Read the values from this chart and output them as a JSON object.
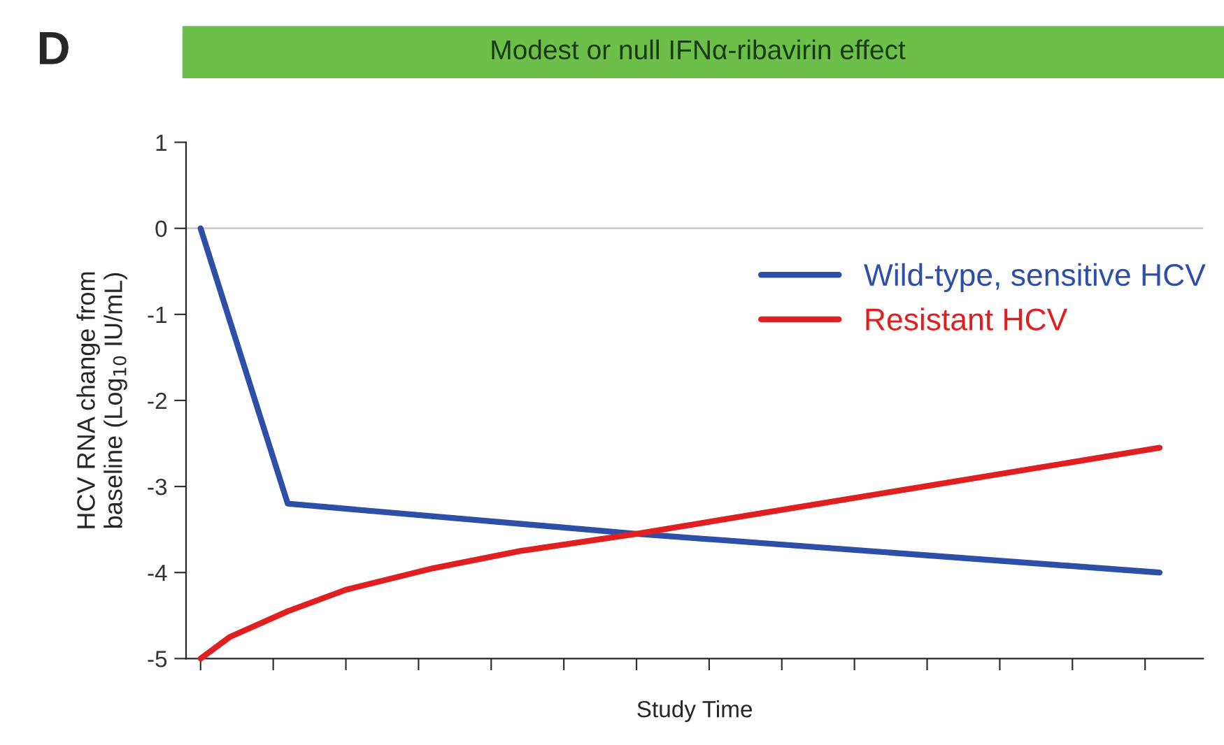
{
  "chart_data": {
    "type": "line",
    "title": "Modest or null IFNα-ribavirin effect",
    "xlabel": "Study Time",
    "ylabel": "HCV RNA change from\nbaseline (Log$_{10}$ IU/mL)",
    "annotations": [
      "D"
    ],
    "categories": [
      null,
      null,
      null,
      null,
      null,
      null,
      null,
      null,
      null,
      null,
      null,
      null,
      null,
      null,
      null,
      null,
      null,
      null,
      null,
      null,
      null,
      null,
      null,
      null,
      null,
      null,
      null,
      null,
      null,
      null,
      null,
      null,
      null,
      null,
      null
    ],
    "series": [
      {
        "name": "Wild-type, sensitive HCV",
        "color": "#2e4fa8",
        "values": [
          0,
          null,
          null,
          -3.2,
          null,
          null,
          null,
          null,
          null,
          null,
          null,
          null,
          null,
          null,
          null,
          -3.55,
          null,
          null,
          null,
          null,
          null,
          null,
          null,
          null,
          null,
          null,
          null,
          null,
          null,
          null,
          null,
          null,
          null,
          -4.0,
          null
        ]
      },
      {
        "name": "Resistant HCV",
        "color": "#e02020",
        "values": [
          -5,
          -4.75,
          null,
          -4.45,
          null,
          -4.2,
          null,
          null,
          -3.95,
          null,
          null,
          -3.75,
          null,
          null,
          null,
          -3.55,
          null,
          null,
          null,
          null,
          null,
          null,
          -3.16,
          null,
          null,
          null,
          null,
          null,
          null,
          null,
          null,
          null,
          null,
          -2.55,
          null
        ]
      }
    ],
    "ylim": [
      -5,
      1
    ],
    "yticks": [
      -5,
      -4,
      -3,
      -2,
      -1,
      0,
      1
    ],
    "ref_lines": [
      {
        "axis": "y",
        "value": 0,
        "color": "#cccccc"
      }
    ],
    "grid": false,
    "legend": "top right",
    "marker": "none",
    "line_style": "solid"
  }
}
